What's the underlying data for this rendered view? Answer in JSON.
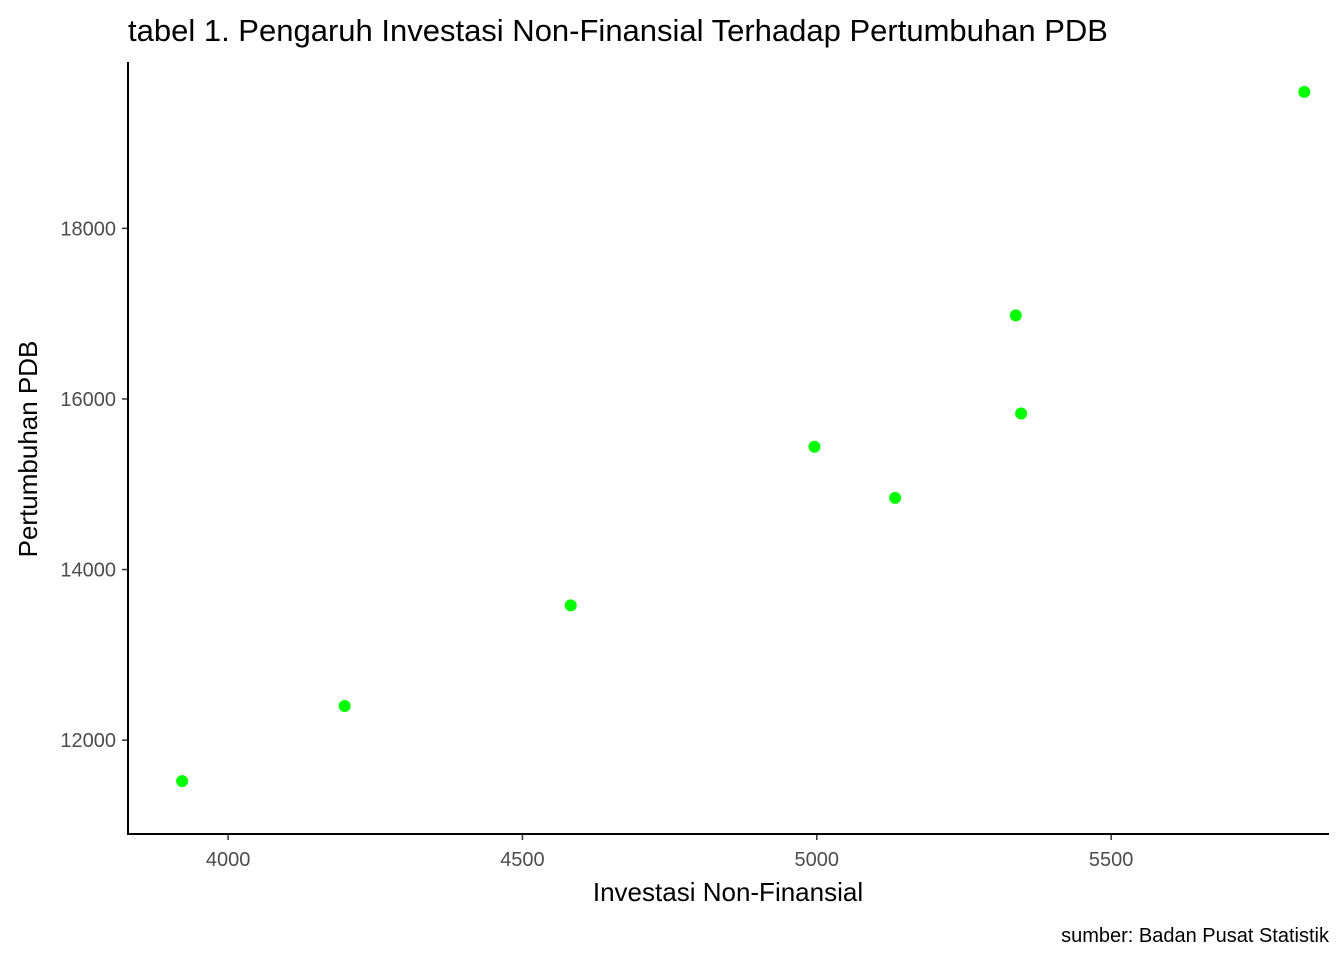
{
  "chart_data": {
    "type": "scatter",
    "title": "tabel 1. Pengaruh Investasi Non-Finansial Terhadap Pertumbuhan PDB",
    "xlabel": "Investasi Non-Finansial",
    "ylabel": "Pertumbuhan PDB",
    "caption": "sumber: Badan Pusat Statistik",
    "xlim": [
      3830,
      5870
    ],
    "ylim": [
      10900,
      19950
    ],
    "xticks": [
      4000,
      4500,
      5000,
      5500
    ],
    "yticks": [
      12000,
      14000,
      16000,
      18000
    ],
    "xtick_labels": [
      "4000",
      "4500",
      "5000",
      "5500"
    ],
    "ytick_labels": [
      "12000",
      "14000",
      "16000",
      "18000"
    ],
    "grid": false,
    "legend": "none",
    "point_color": "#00ff00",
    "points": [
      {
        "x": 3922,
        "y": 11520
      },
      {
        "x": 4198,
        "y": 12400
      },
      {
        "x": 4582,
        "y": 13580
      },
      {
        "x": 4996,
        "y": 15440
      },
      {
        "x": 5133,
        "y": 14840
      },
      {
        "x": 5338,
        "y": 16980
      },
      {
        "x": 5347,
        "y": 15830
      },
      {
        "x": 5828,
        "y": 19600
      }
    ]
  }
}
